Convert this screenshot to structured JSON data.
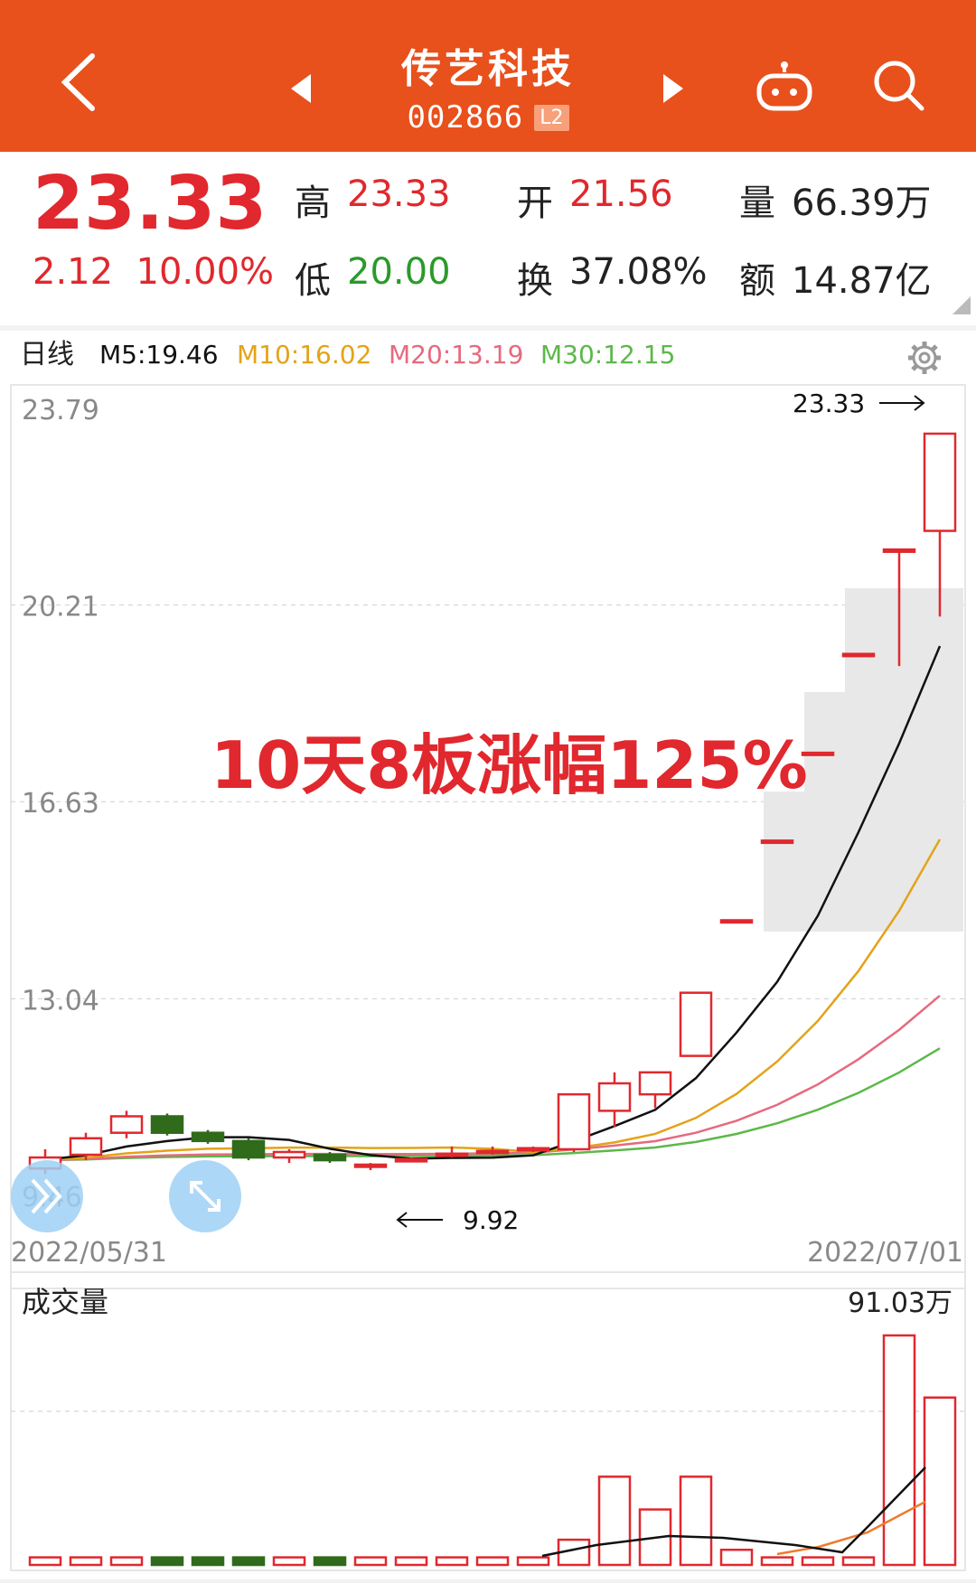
{
  "header": {
    "title": "传艺科技",
    "code": "002866",
    "level_badge": "L2",
    "icons": [
      "back-arrow-icon",
      "prev-stock-icon",
      "next-stock-icon",
      "robot-assistant-icon",
      "search-icon"
    ]
  },
  "quote": {
    "price": "23.33",
    "change": "2.12",
    "change_pct": "10.00%",
    "high_label": "高",
    "high": "23.33",
    "low_label": "低",
    "low": "20.00",
    "open_label": "开",
    "open": "21.56",
    "turnover_label": "换",
    "turnover": "37.08%",
    "volume_label": "量",
    "volume": "66.39万",
    "amount_label": "额",
    "amount": "14.87亿"
  },
  "kline": {
    "period_label": "日线",
    "ma5": "M5:19.46",
    "ma10": "M10:16.02",
    "ma20": "M20:13.19",
    "ma30": "M30:12.15",
    "y_ticks": [
      "23.79",
      "20.21",
      "16.63",
      "13.04",
      "9.46"
    ],
    "high_marker": "23.33",
    "low_marker": "9.92",
    "date_start": "2022/05/31",
    "date_end": "2022/07/01",
    "overlay_text": "10天8板涨幅125%",
    "colors": {
      "up": "#e0282e",
      "down": "#2f6b1a",
      "ma5": "#111111",
      "ma10": "#e3a318",
      "ma20": "#e66a7e",
      "ma30": "#5cb84a",
      "overlay": "#e0282e"
    }
  },
  "volume_panel": {
    "label": "成交量",
    "max_label": "91.03万"
  },
  "chart_data": [
    {
      "type": "candlestick",
      "ylim": [
        9.46,
        23.79
      ],
      "x_start": "2022/05/31",
      "x_end": "2022/07/01",
      "candles": [
        {
          "o": 9.95,
          "c": 10.15,
          "h": 10.3,
          "l": 9.85,
          "up": true
        },
        {
          "o": 10.2,
          "c": 10.5,
          "h": 10.6,
          "l": 10.1,
          "up": true
        },
        {
          "o": 10.6,
          "c": 10.9,
          "h": 11.0,
          "l": 10.5,
          "up": true
        },
        {
          "o": 10.9,
          "c": 10.6,
          "h": 10.95,
          "l": 10.55,
          "up": false
        },
        {
          "o": 10.6,
          "c": 10.45,
          "h": 10.65,
          "l": 10.4,
          "up": false
        },
        {
          "o": 10.45,
          "c": 10.15,
          "h": 10.5,
          "l": 10.1,
          "up": false
        },
        {
          "o": 10.15,
          "c": 10.25,
          "h": 10.3,
          "l": 10.05,
          "up": true
        },
        {
          "o": 10.2,
          "c": 10.1,
          "h": 10.25,
          "l": 10.05,
          "up": false
        },
        {
          "o": 10.0,
          "c": 10.02,
          "h": 10.05,
          "l": 9.92,
          "up": true
        },
        {
          "o": 10.1,
          "c": 10.12,
          "h": 10.15,
          "l": 10.08,
          "up": true
        },
        {
          "o": 10.2,
          "c": 10.22,
          "h": 10.35,
          "l": 10.15,
          "up": true
        },
        {
          "o": 10.25,
          "c": 10.27,
          "h": 10.35,
          "l": 10.2,
          "up": true
        },
        {
          "o": 10.3,
          "c": 10.32,
          "h": 10.35,
          "l": 10.25,
          "up": true
        },
        {
          "o": 10.3,
          "c": 11.3,
          "h": 11.3,
          "l": 10.25,
          "up": true
        },
        {
          "o": 11.0,
          "c": 11.5,
          "h": 11.7,
          "l": 10.7,
          "up": true
        },
        {
          "o": 11.3,
          "c": 11.7,
          "h": 11.7,
          "l": 11.05,
          "up": true
        },
        {
          "o": 12.0,
          "c": 13.15,
          "h": 13.15,
          "l": 12.0,
          "up": true
        },
        {
          "o": 14.45,
          "c": 14.47,
          "h": 14.47,
          "l": 14.45,
          "up": true
        },
        {
          "o": 15.9,
          "c": 15.92,
          "h": 15.92,
          "l": 15.9,
          "up": true
        },
        {
          "o": 17.5,
          "c": 17.52,
          "h": 17.52,
          "l": 17.5,
          "up": true
        },
        {
          "o": 19.3,
          "c": 19.32,
          "h": 19.32,
          "l": 19.3,
          "up": true
        },
        {
          "o": 21.2,
          "c": 21.22,
          "h": 21.22,
          "l": 19.1,
          "up": true
        },
        {
          "o": 21.56,
          "c": 23.33,
          "h": 23.33,
          "l": 20.0,
          "up": true
        }
      ]
    },
    {
      "type": "bar",
      "max": 91.03,
      "unit": "万",
      "values": [
        3,
        3,
        3,
        3,
        3,
        3,
        3,
        3,
        3,
        3,
        3,
        3,
        3,
        10,
        35,
        22,
        35,
        6,
        3,
        3,
        3,
        91.03,
        66.39
      ]
    }
  ]
}
